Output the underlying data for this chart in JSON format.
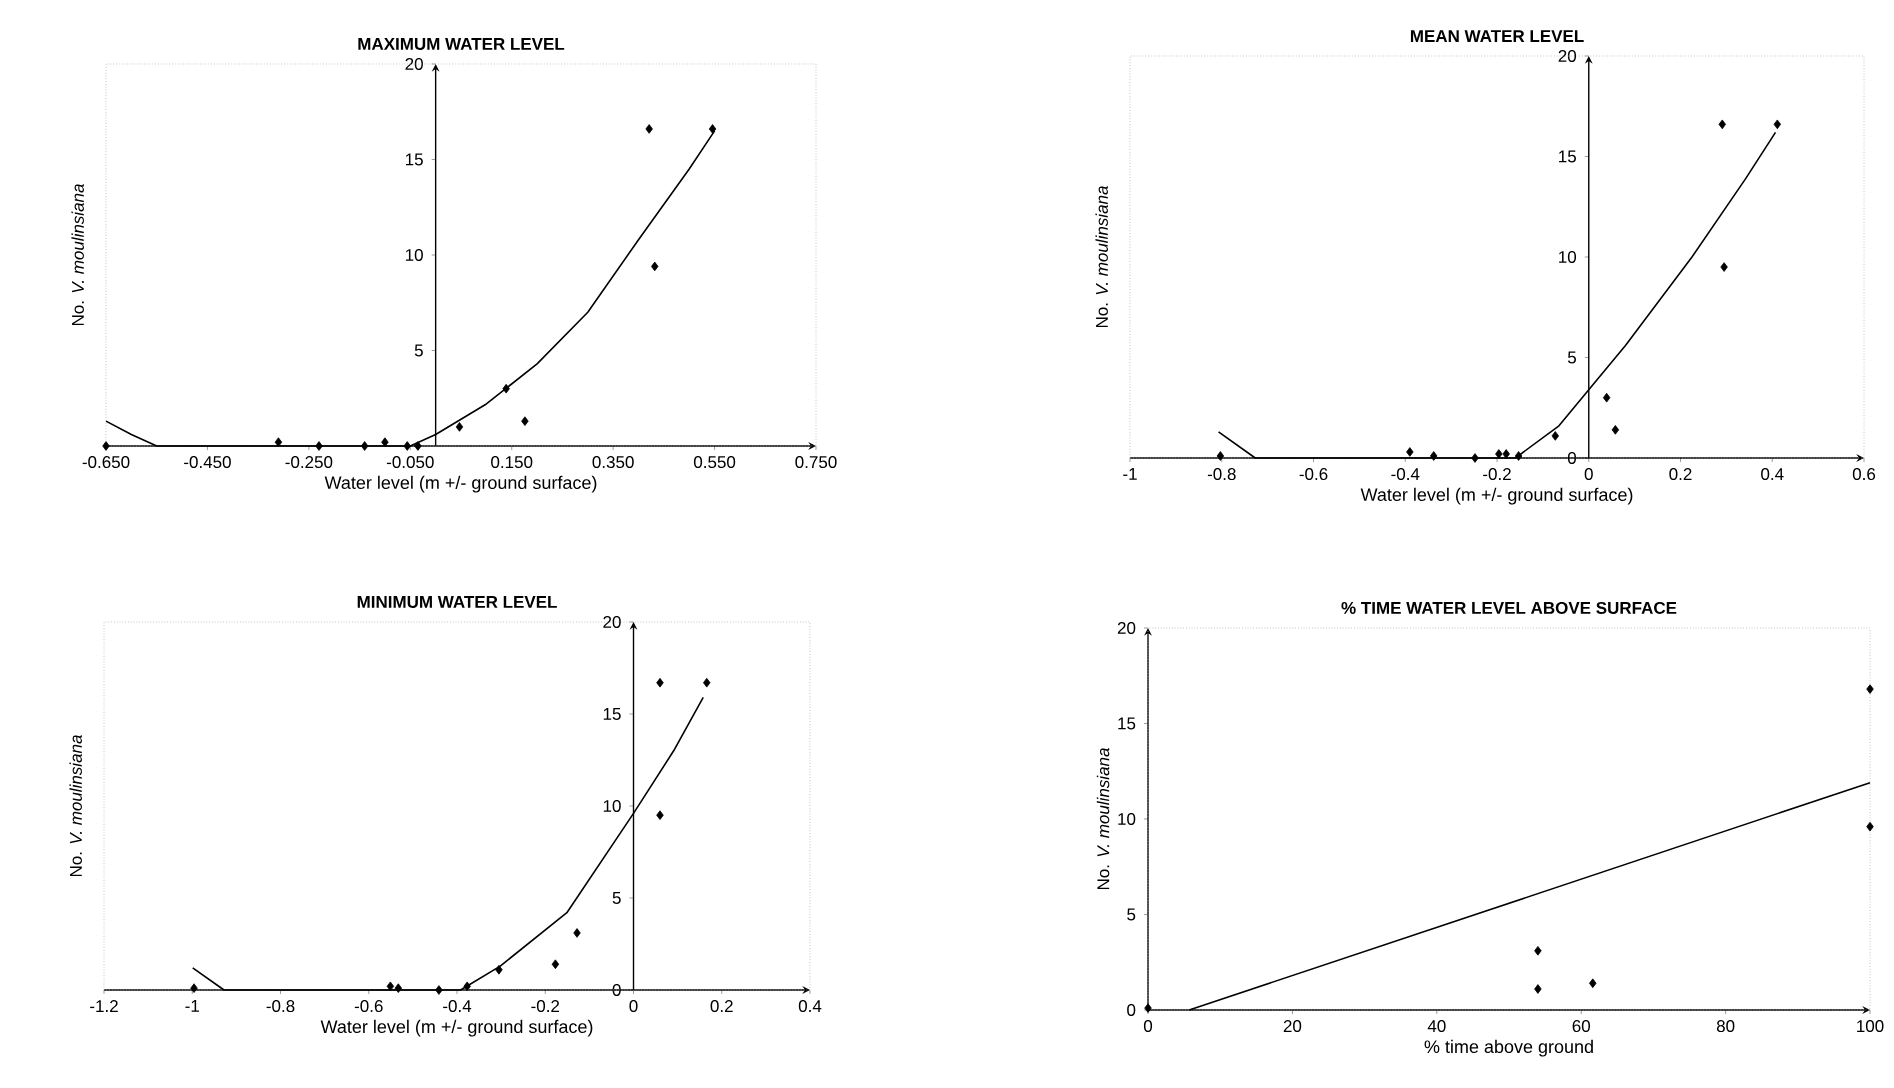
{
  "chart_data": [
    {
      "type": "scatter",
      "title": "MAXIMUM WATER LEVEL",
      "xlabel": "Water level (m +/- ground surface)",
      "ylabel": "No. *V. moulinsiana*",
      "xlim": [
        -0.65,
        0.75
      ],
      "ylim": [
        0,
        20
      ],
      "xticks": [
        {
          "value": -0.65,
          "label": "-0.650"
        },
        {
          "value": -0.45,
          "label": "-0.450"
        },
        {
          "value": -0.25,
          "label": "-0.250"
        },
        {
          "value": -0.05,
          "label": "-0.050"
        },
        {
          "value": 0.15,
          "label": "0.150"
        },
        {
          "value": 0.35,
          "label": "0.350"
        },
        {
          "value": 0.55,
          "label": "0.550"
        },
        {
          "value": 0.75,
          "label": "0.750"
        }
      ],
      "yticks": [
        5,
        10,
        15,
        20
      ],
      "series": [
        {
          "marker": "diamond",
          "color": "#000000",
          "x": [
            -0.65,
            -0.31,
            -0.23,
            -0.14,
            -0.1,
            -0.056,
            -0.035,
            0.047,
            0.139,
            0.176,
            0.421,
            0.432,
            0.546
          ],
          "values": [
            0,
            0.2,
            0,
            0,
            0.2,
            0,
            0,
            1,
            3,
            1.3,
            16.6,
            9.4,
            16.6
          ]
        },
        {
          "type": "line",
          "marker": "none",
          "line_style": "solid",
          "color": "#000000",
          "x": [
            -0.65,
            -0.6,
            -0.55,
            -0.05,
            0,
            0.1,
            0.2,
            0.3,
            0.4,
            0.5,
            0.55
          ],
          "values": [
            1.3,
            0.6,
            0,
            0,
            0.6,
            2.2,
            4.3,
            7,
            10.8,
            14.5,
            16.5
          ]
        }
      ]
    },
    {
      "type": "scatter",
      "title": "MEAN WATER LEVEL",
      "xlabel": "Water level (m +/- ground surface)",
      "ylabel": "No. *V. moulinsiana*",
      "xlim": [
        -1,
        0.6
      ],
      "ylim": [
        0,
        20
      ],
      "xticks": [
        -1,
        -0.6,
        -0.4,
        -0.2,
        0,
        0.2,
        0.4,
        0.6,
        {
          "value": -0.8,
          "label": "-0.8"
        }
      ],
      "yticks": [
        0,
        5,
        10,
        15,
        20
      ],
      "series": [
        {
          "marker": "diamond",
          "color": "#000000",
          "x": [
            -0.803,
            -0.39,
            -0.338,
            -0.248,
            -0.196,
            -0.18,
            -0.153,
            -0.073,
            0.039,
            0.058,
            0.291,
            0.295,
            0.411
          ],
          "values": [
            0.1,
            0.3,
            0.1,
            0,
            0.2,
            0.2,
            0.1,
            1.1,
            3,
            1.4,
            16.6,
            9.5,
            16.6
          ]
        },
        {
          "type": "line",
          "marker": "none",
          "line_style": "solid",
          "color": "#000000",
          "x": [
            -0.807,
            -0.727,
            -0.16,
            -0.065,
            0,
            0.08,
            0.225,
            0.342,
            0.407
          ],
          "values": [
            1.3,
            0,
            0,
            1.6,
            3.4,
            5.6,
            10,
            13.9,
            16.2
          ]
        }
      ]
    },
    {
      "type": "scatter",
      "title": "MINIMUM WATER LEVEL",
      "xlabel": "Water level (m +/- ground surface)",
      "ylabel": "No. *V. moulinsiana*",
      "xlim": [
        -1.2,
        0.4
      ],
      "ylim": [
        0,
        20
      ],
      "xticks": [
        -1.2,
        -1,
        -0.8,
        -0.6,
        -0.4,
        -0.2,
        0,
        0.2,
        0.4
      ],
      "yticks": [
        0,
        5,
        10,
        15,
        20
      ],
      "series": [
        {
          "marker": "diamond",
          "color": "#000000",
          "x": [
            -0.996,
            -0.551,
            -0.533,
            -0.441,
            -0.377,
            -0.305,
            -0.177,
            -0.128,
            0.06,
            0.06,
            0.166
          ],
          "values": [
            0.1,
            0.2,
            0.1,
            0,
            0.2,
            1.1,
            1.4,
            3.1,
            16.7,
            9.5,
            16.7
          ]
        },
        {
          "type": "line",
          "marker": "none",
          "line_style": "solid",
          "color": "#000000",
          "x": [
            -0.999,
            -0.928,
            -0.392,
            -0.302,
            -0.151,
            0,
            0.091,
            0.158
          ],
          "values": [
            1.2,
            0,
            0,
            1.3,
            4.2,
            9.6,
            13,
            15.9
          ]
        }
      ]
    },
    {
      "type": "scatter",
      "title": "% TIME WATER LEVEL ABOVE SURFACE",
      "xlabel": "% time above ground",
      "ylabel": "No. *V. moulinsiana*",
      "xlim": [
        0,
        100
      ],
      "ylim": [
        0,
        20
      ],
      "xticks": [
        0,
        20,
        40,
        60,
        80,
        100
      ],
      "yticks": [
        0,
        5,
        10,
        15,
        20
      ],
      "series": [
        {
          "marker": "diamond",
          "color": "#000000",
          "x": [
            0,
            54,
            54,
            61.6,
            100,
            100
          ],
          "values": [
            0.1,
            3.1,
            1.1,
            1.4,
            16.8,
            9.6
          ]
        },
        {
          "type": "line",
          "marker": "none",
          "line_style": "solid",
          "color": "#000000",
          "x": [
            5.7,
            100
          ],
          "values": [
            0,
            11.9
          ]
        }
      ]
    }
  ]
}
